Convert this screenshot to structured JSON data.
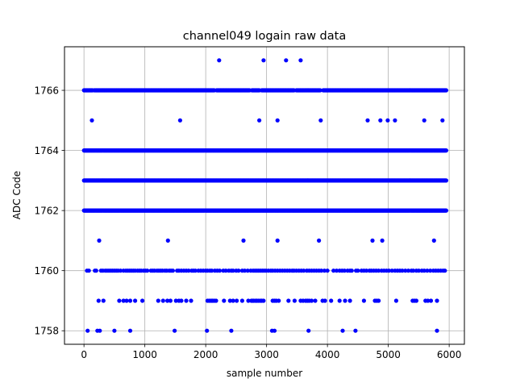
{
  "chart_data": {
    "type": "scatter",
    "title": "channel049 logain raw data",
    "xlabel": "sample number",
    "ylabel": "ADC Code",
    "xlim": [
      -320,
      6250
    ],
    "ylim": [
      1757.55,
      1767.45
    ],
    "xticks": [
      0,
      1000,
      2000,
      3000,
      4000,
      5000,
      6000
    ],
    "yticks": [
      1758,
      1760,
      1762,
      1764,
      1766
    ],
    "grid": true,
    "marker_color": "#0000ff",
    "bands": [
      {
        "y": 1762,
        "x_ranges": [
          [
            0,
            5950
          ]
        ]
      },
      {
        "y": 1763,
        "x_ranges": [
          [
            0,
            5950
          ]
        ]
      },
      {
        "y": 1764,
        "x_ranges": [
          [
            0,
            5950
          ]
        ]
      },
      {
        "y": 1766,
        "x_ranges": [
          [
            0,
            140
          ],
          [
            170,
            2140
          ],
          [
            2180,
            2720
          ],
          [
            2760,
            2880
          ],
          [
            2920,
            3450
          ],
          [
            3490,
            3880
          ],
          [
            3930,
            5950
          ]
        ]
      }
    ],
    "sparse_points": {
      "1767": [
        2220,
        2950,
        3320,
        3560
      ],
      "1765": [
        130,
        1580,
        2880,
        3180,
        3890,
        4660,
        4870,
        4990,
        5110,
        5590,
        5890
      ],
      "1761": [
        250,
        1380,
        2620,
        3180,
        3860,
        4740,
        4900,
        5750
      ],
      "1760": [
        50,
        80,
        180,
        200,
        280,
        310,
        350,
        380,
        410,
        440,
        470,
        500,
        530,
        560,
        600,
        650,
        690,
        720,
        750,
        780,
        810,
        840,
        880,
        910,
        940,
        980,
        1010,
        1040,
        1100,
        1130,
        1160,
        1200,
        1230,
        1260,
        1290,
        1330,
        1360,
        1400,
        1430,
        1460,
        1530,
        1560,
        1600,
        1640,
        1680,
        1720,
        1770,
        1800,
        1830,
        1880,
        1920,
        1960,
        2000,
        2030,
        2070,
        2100,
        2150,
        2190,
        2230,
        2290,
        2330,
        2380,
        2420,
        2450,
        2500,
        2540,
        2600,
        2640,
        2690,
        2740,
        2780,
        2810,
        2840,
        2870,
        2900,
        2930,
        2960,
        2990,
        3030,
        3070,
        3100,
        3140,
        3180,
        3220,
        3260,
        3300,
        3340,
        3380,
        3420,
        3450,
        3490,
        3530,
        3570,
        3610,
        3660,
        3700,
        3740,
        3780,
        3820,
        3860,
        3900,
        3950,
        4000,
        4100,
        4150,
        4200,
        4240,
        4280,
        4330,
        4370,
        4400,
        4470,
        4500,
        4560,
        4600,
        4640,
        4690,
        4720,
        4760,
        4800,
        4840,
        4890,
        4930,
        4970,
        5010,
        5060,
        5110,
        5150,
        5190,
        5230,
        5280,
        5330,
        5380,
        5410,
        5460,
        5500,
        5550,
        5590,
        5640,
        5690,
        5740,
        5780,
        5820,
        5860,
        5900,
        5930
      ],
      "1759": [
        240,
        320,
        580,
        650,
        700,
        760,
        840,
        960,
        1220,
        1300,
        1370,
        1420,
        1510,
        1560,
        1600,
        1680,
        1760,
        2030,
        2060,
        2090,
        2110,
        2140,
        2170,
        2300,
        2400,
        2450,
        2510,
        2600,
        2700,
        2750,
        2770,
        2790,
        2820,
        2840,
        2870,
        2900,
        2920,
        2950,
        3100,
        3130,
        3160,
        3200,
        3360,
        3460,
        3560,
        3600,
        3640,
        3670,
        3700,
        3740,
        3800,
        3920,
        3960,
        4060,
        4200,
        4290,
        4370,
        4600,
        4780,
        4810,
        4840,
        5130,
        5400,
        5430,
        5460,
        5610,
        5650,
        5700,
        5800
      ],
      "1758": [
        60,
        220,
        260,
        500,
        760,
        1490,
        2020,
        2420,
        3090,
        3130,
        3690,
        4250,
        4460,
        5800
      ]
    }
  }
}
